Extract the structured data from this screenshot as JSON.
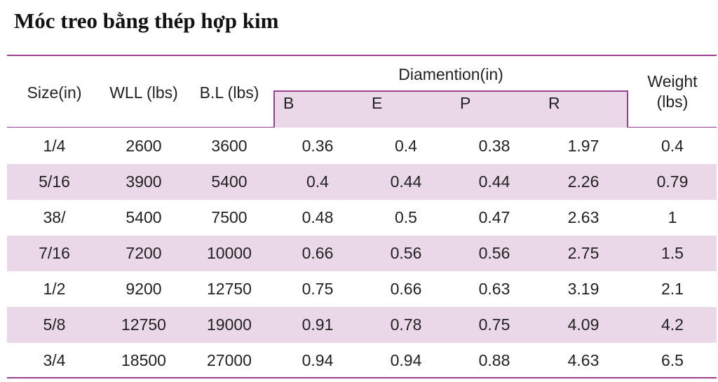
{
  "title": "Móc treo bằng thép hợp kim",
  "table": {
    "headers": {
      "size": "Size(in)",
      "wll": "WLL (lbs)",
      "bl": "B.L (lbs)",
      "diamention": "Diamention(in)",
      "weight_line1": "Weight",
      "weight_line2": "(lbs)",
      "sub": [
        "B",
        "E",
        "P",
        "R"
      ]
    },
    "rows": [
      [
        "1/4",
        "2600",
        "3600",
        "0.36",
        "0.4",
        "0.38",
        "1.97",
        "0.4"
      ],
      [
        "5/16",
        "3900",
        "5400",
        "0.4",
        "0.44",
        "0.44",
        "2.26",
        "0.79"
      ],
      [
        "38/",
        "5400",
        "7500",
        "0.48",
        "0.5",
        "0.47",
        "2.63",
        "1"
      ],
      [
        "7/16",
        "7200",
        "10000",
        "0.66",
        "0.56",
        "0.56",
        "2.75",
        "1.5"
      ],
      [
        "1/2",
        "9200",
        "12750",
        "0.75",
        "0.66",
        "0.63",
        "3.19",
        "2.1"
      ],
      [
        "5/8",
        "12750",
        "19000",
        "0.91",
        "0.78",
        "0.75",
        "4.09",
        "4.2"
      ],
      [
        "3/4",
        "18500",
        "27000",
        "0.94",
        "0.94",
        "0.88",
        "4.63",
        "6.5"
      ]
    ]
  },
  "colors": {
    "accent": "#9b3f8e",
    "row_shade": "#ead7e8"
  }
}
